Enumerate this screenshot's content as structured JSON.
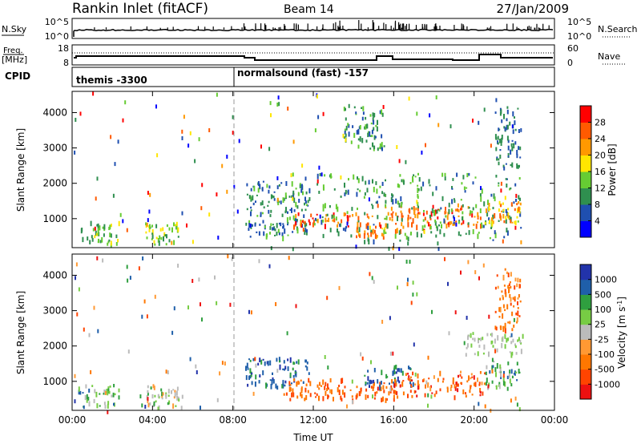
{
  "header": {
    "station": "Rankin Inlet (fitACF)",
    "beam": "Beam 14",
    "date": "27/Jan/2009"
  },
  "nsky_panel": {
    "left_label": "N.Sky",
    "left_ticks": [
      "10^5",
      "10^0"
    ],
    "right_label": "N.Search",
    "right_ticks": [
      "10^5",
      "10^0"
    ]
  },
  "freq_panel": {
    "left_label_top": "Freq.",
    "left_label_unit": "[MHz]",
    "left_ticks": [
      "18",
      "8"
    ],
    "right_label": "Nave",
    "right_ticks": [
      "60",
      "0"
    ]
  },
  "cpid_panel": {
    "label": "CPID",
    "modes": [
      {
        "name": "themis -3300",
        "start_hour": 0
      },
      {
        "name": "normalsound (fast) -157",
        "start_hour": 8.0
      }
    ]
  },
  "colors": {
    "power_scale": [
      "#0000ff",
      "#1f4fb0",
      "#2f8f4f",
      "#66cc33",
      "#ffe600",
      "#ff9900",
      "#ff5a00",
      "#ff0000"
    ],
    "velocity_scale": [
      "#2233aa",
      "#1f5faa",
      "#2f9f3f",
      "#77cc44",
      "#bbbbbb",
      "#ff9933",
      "#ff7700",
      "#ff4400",
      "#ee1111"
    ]
  },
  "chart_data": [
    {
      "type": "heatmap",
      "name": "power",
      "xlabel": "",
      "ylabel": "Slant Range [km]",
      "xlim": [
        0,
        24
      ],
      "ylim": [
        180,
        4600
      ],
      "yticks": [
        "1000",
        "2000",
        "3000",
        "4000"
      ],
      "ytick_values": [
        1000,
        2000,
        3000,
        4000
      ],
      "colorbar": {
        "label": "Power [dB]",
        "ticks": [
          "4",
          "8",
          "12",
          "16",
          "20",
          "24",
          "28"
        ],
        "range": [
          0,
          32
        ]
      },
      "scatter_regions": [
        {
          "t": [
            0.3,
            2.3
          ],
          "r": [
            300,
            950
          ],
          "v": [
            8,
            18
          ]
        },
        {
          "t": [
            3.6,
            5.3
          ],
          "r": [
            300,
            900
          ],
          "v": [
            10,
            20
          ]
        },
        {
          "t": [
            8.6,
            11.8
          ],
          "r": [
            500,
            2100
          ],
          "v": [
            4,
            14
          ]
        },
        {
          "t": [
            11.0,
            15.0
          ],
          "r": [
            800,
            1200
          ],
          "v": [
            20,
            30
          ]
        },
        {
          "t": [
            14.0,
            16.5
          ],
          "r": [
            500,
            900
          ],
          "v": [
            18,
            28
          ]
        },
        {
          "t": [
            15.5,
            20.5
          ],
          "r": [
            800,
            1400
          ],
          "v": [
            22,
            30
          ]
        },
        {
          "t": [
            12.0,
            22.3
          ],
          "r": [
            400,
            2300
          ],
          "v": [
            6,
            16
          ]
        },
        {
          "t": [
            20.5,
            22.3
          ],
          "r": [
            900,
            1500
          ],
          "v": [
            16,
            26
          ]
        },
        {
          "t": [
            13.5,
            15.5
          ],
          "r": [
            3000,
            4200
          ],
          "v": [
            6,
            14
          ]
        },
        {
          "t": [
            21.0,
            22.3
          ],
          "r": [
            2500,
            4200
          ],
          "v": [
            6,
            12
          ]
        }
      ]
    },
    {
      "type": "heatmap",
      "name": "velocity",
      "xlabel": "Time UT",
      "ylabel": "Slant Range [km]",
      "xlim": [
        0,
        24
      ],
      "xticks": [
        "00:00",
        "04:00",
        "08:00",
        "12:00",
        "16:00",
        "20:00",
        "00:00"
      ],
      "xtick_values": [
        0,
        4,
        8,
        12,
        16,
        20,
        24
      ],
      "ylim": [
        180,
        4600
      ],
      "yticks": [
        "1000",
        "2000",
        "3000",
        "4000"
      ],
      "ytick_values": [
        1000,
        2000,
        3000,
        4000
      ],
      "colorbar": {
        "label": "Velocity [m s^-1]",
        "ticks": [
          "1000",
          "500",
          "100",
          "25",
          "-25",
          "-100",
          "-500",
          "-1000"
        ]
      },
      "scatter_regions": [
        {
          "t": [
            0.3,
            2.3
          ],
          "r": [
            300,
            950
          ],
          "v": [
            1,
            4
          ]
        },
        {
          "t": [
            3.6,
            5.3
          ],
          "r": [
            300,
            900
          ],
          "v": [
            2,
            5
          ]
        },
        {
          "t": [
            8.6,
            11.8
          ],
          "r": [
            900,
            1700
          ],
          "v": [
            0,
            2
          ]
        },
        {
          "t": [
            10.5,
            16.0
          ],
          "r": [
            500,
            1100
          ],
          "v": [
            6,
            7
          ]
        },
        {
          "t": [
            14.5,
            17.0
          ],
          "r": [
            900,
            1500
          ],
          "v": [
            0,
            2
          ]
        },
        {
          "t": [
            16.0,
            20.5
          ],
          "r": [
            600,
            1300
          ],
          "v": [
            5,
            8
          ]
        },
        {
          "t": [
            20.5,
            22.3
          ],
          "r": [
            800,
            1600
          ],
          "v": [
            1,
            4
          ]
        },
        {
          "t": [
            19.5,
            22.5
          ],
          "r": [
            1800,
            2400
          ],
          "v": [
            3,
            4
          ]
        },
        {
          "t": [
            21.0,
            22.3
          ],
          "r": [
            2500,
            4200
          ],
          "v": [
            5,
            7
          ]
        }
      ]
    }
  ]
}
